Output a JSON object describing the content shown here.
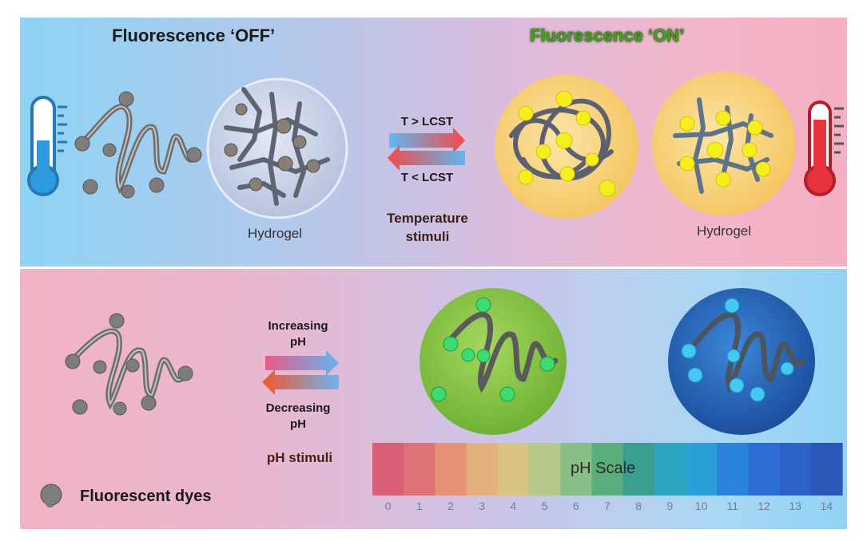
{
  "top": {
    "title_off": "Fluorescence ‘OFF’",
    "title_on": "Fluorescence ‘ON’",
    "hydrogel_left": "Hydrogel",
    "hydrogel_right": "Hydrogel",
    "arrow_top_label": "T > LCST",
    "arrow_bottom_label": "T < LCST",
    "stimuli_line1": "Temperature",
    "stimuli_line2": "stimuli"
  },
  "bottom": {
    "increasing_line1": "Increasing",
    "increasing_line2": "pH",
    "decreasing_line1": "Decreasing",
    "decreasing_line2": "pH",
    "stimuli": "pH stimuli",
    "legend": "Fluorescent dyes",
    "scale_title": "pH Scale",
    "scale_numbers": [
      "0",
      "1",
      "2",
      "3",
      "4",
      "5",
      "6",
      "7",
      "8",
      "9",
      "10",
      "11",
      "12",
      "13",
      "14"
    ],
    "scale_colors": [
      "#d96075",
      "#e07178",
      "#e59277",
      "#e4b07e",
      "#d9c382",
      "#b6c98a",
      "#88bf86",
      "#5aae7c",
      "#3b9f8f",
      "#2ea6c2",
      "#2a9fd8",
      "#2b84d9",
      "#2d6fd0",
      "#2c62c6",
      "#2a57b8"
    ]
  },
  "colors": {
    "dye_gray": "#8a8a8a",
    "dye_yellow": "#f2ea1a",
    "dye_green": "#38d96e",
    "dye_cyan": "#3ec6f0",
    "circle_yellow": "#f8d27a",
    "circle_green": "#8cc84b",
    "circle_blue": "#2f6fc2"
  }
}
